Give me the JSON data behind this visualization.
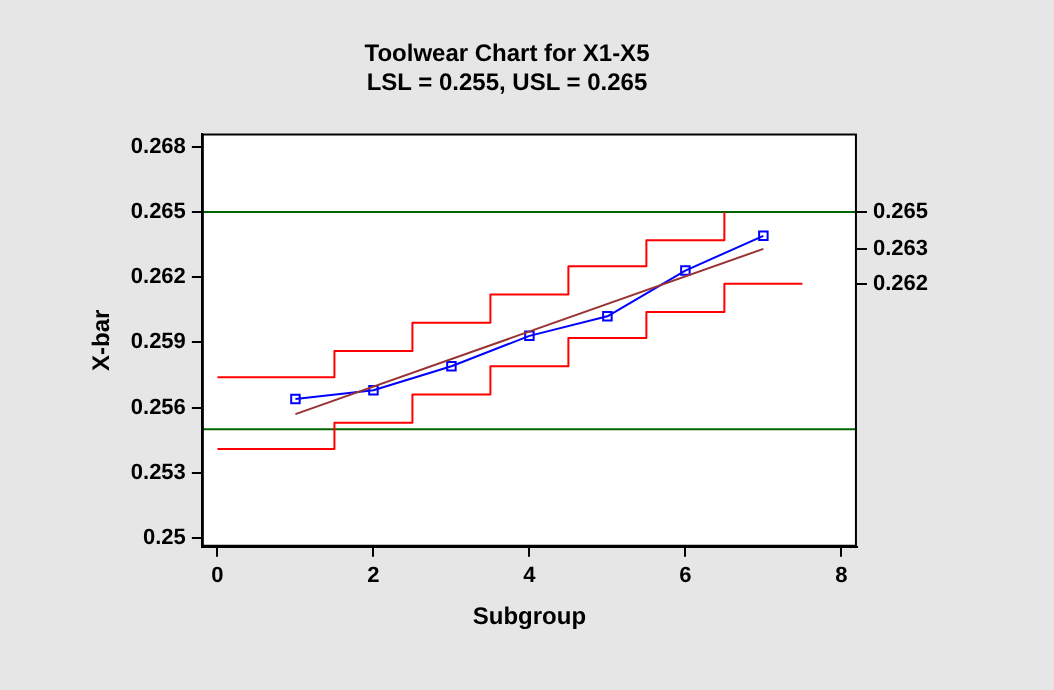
{
  "chart_data": {
    "type": "line",
    "title": "Toolwear Chart for X1-X5",
    "subtitle": "LSL = 0.255, USL = 0.265",
    "xlabel": "Subgroup",
    "ylabel": "X-bar",
    "xlim": [
      -0.2,
      8.2
    ],
    "xticks": [
      0,
      2,
      4,
      6,
      8
    ],
    "ylim": [
      0.2496,
      0.2686
    ],
    "yticks": [
      0.25,
      0.253,
      0.256,
      0.259,
      0.262,
      0.265,
      0.268
    ],
    "y2lim": [
      0.2496,
      0.2686
    ],
    "y2ticks": [
      {
        "value": 0.265,
        "label": "0.265"
      },
      {
        "value": 0.2633,
        "label": "0.263"
      },
      {
        "value": 0.2617,
        "label": "0.262"
      }
    ],
    "grid": false,
    "legend": false,
    "ref_lines": [
      {
        "axis": "y",
        "value": 0.255,
        "color": "#006400"
      },
      {
        "axis": "y",
        "value": 0.265,
        "color": "#006400"
      }
    ],
    "series": [
      {
        "type": "step",
        "color": "#ff0000",
        "marker": "none",
        "x": [
          0,
          1.5,
          2.5,
          3.5,
          4.5,
          5.5,
          6.5
        ],
        "values": [
          0.2574,
          0.2586,
          0.2599,
          0.2612,
          0.2625,
          0.2637,
          0.265
        ]
      },
      {
        "type": "step",
        "color": "#ff0000",
        "marker": "none",
        "x": [
          0,
          1.5,
          2.5,
          3.5,
          4.5,
          5.5,
          6.5,
          7.5
        ],
        "values": [
          0.2541,
          0.2553,
          0.2566,
          0.2579,
          0.2592,
          0.2604,
          0.2617,
          0.2617
        ]
      },
      {
        "type": "line",
        "color": "#993333",
        "marker": "none",
        "x": [
          1,
          7
        ],
        "values": [
          0.2557,
          0.2633
        ]
      },
      {
        "type": "line",
        "color": "#0000ff",
        "marker": "square",
        "x": [
          1,
          2,
          3,
          4,
          5,
          6,
          7
        ],
        "values": [
          0.2564,
          0.2568,
          0.2579,
          0.2593,
          0.2602,
          0.2623,
          0.2639
        ]
      }
    ]
  }
}
